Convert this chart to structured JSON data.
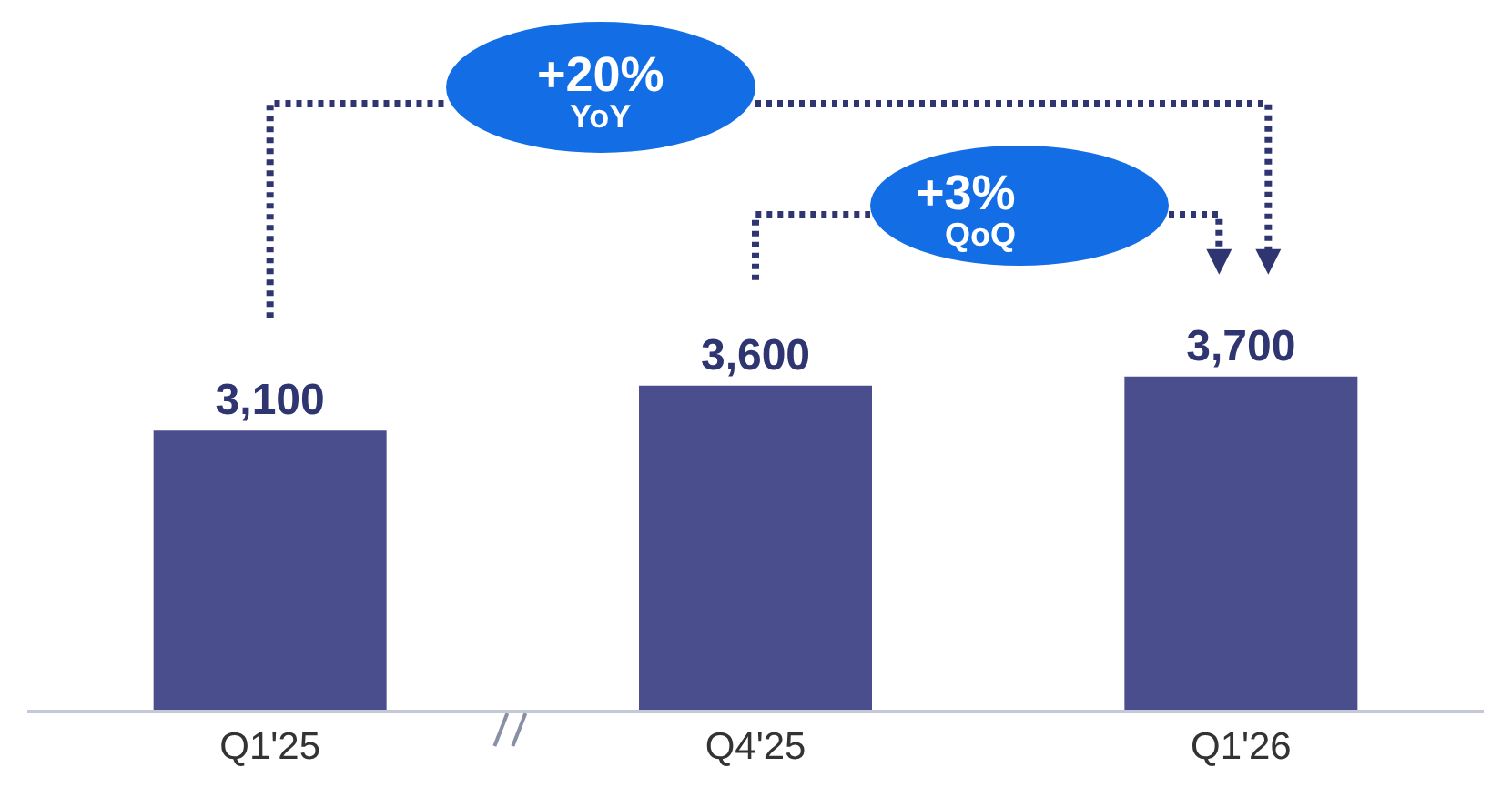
{
  "chart_data": {
    "type": "bar",
    "categories": [
      "Q1'25",
      "Q4'25",
      "Q1'26"
    ],
    "values": [
      3100,
      3600,
      3700
    ],
    "color": "#4a4e8c",
    "value_labels": [
      "3,100",
      "3,600",
      "3,700"
    ],
    "tick_labels": "x",
    "grid": false,
    "legend": false,
    "annotations": [
      "+20%\nYoY",
      "+3%\nQoQ"
    ]
  }
}
